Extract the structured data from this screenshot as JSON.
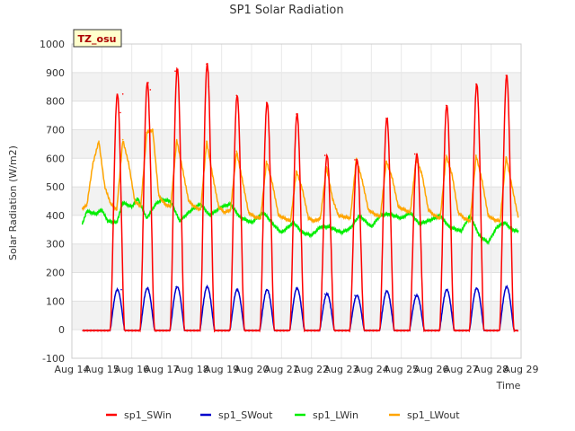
{
  "chart_data": {
    "type": "line",
    "title": "SP1 Solar Radiation",
    "xlabel": "Time",
    "ylabel": "Solar Radiation (W/m2)",
    "ylim": [
      -100,
      1000
    ],
    "xlim": [
      14,
      29
    ],
    "yticks": [
      -100,
      0,
      100,
      200,
      300,
      400,
      500,
      600,
      700,
      800,
      900,
      1000
    ],
    "xticks": [
      {
        "v": 14,
        "label": "Aug 14"
      },
      {
        "v": 15,
        "label": "Aug 15"
      },
      {
        "v": 16,
        "label": "Aug 16"
      },
      {
        "v": 17,
        "label": "Aug 17"
      },
      {
        "v": 18,
        "label": "Aug 18"
      },
      {
        "v": 19,
        "label": "Aug 19"
      },
      {
        "v": 20,
        "label": "Aug 20"
      },
      {
        "v": 21,
        "label": "Aug 21"
      },
      {
        "v": 22,
        "label": "Aug 22"
      },
      {
        "v": 23,
        "label": "Aug 23"
      },
      {
        "v": 24,
        "label": "Aug 24"
      },
      {
        "v": 25,
        "label": "Aug 25"
      },
      {
        "v": 26,
        "label": "Aug 26"
      },
      {
        "v": 27,
        "label": "Aug 27"
      },
      {
        "v": 28,
        "label": "Aug 28"
      },
      {
        "v": 29,
        "label": "Aug 29"
      }
    ],
    "grid": true,
    "legend_position": "bottom",
    "annotation_box": "TZ_osu",
    "x_range_data": [
      14.35,
      28.9
    ],
    "series": [
      {
        "name": "sp1_SWin",
        "color": "#ff0000",
        "daily_peak": [
          825,
          865,
          915,
          930,
          820,
          795,
          755,
          610,
          595,
          740,
          615,
          785,
          860,
          890
        ],
        "points": [
          [
            15.62,
            760
          ],
          [
            15.7,
            825
          ],
          [
            16.55,
            865
          ],
          [
            16.62,
            840
          ],
          [
            17.45,
            905
          ],
          [
            17.5,
            915
          ],
          [
            18.5,
            930
          ],
          [
            18.57,
            850
          ],
          [
            19.5,
            820
          ],
          [
            20.5,
            795
          ],
          [
            21.5,
            755
          ],
          [
            22.45,
            610
          ],
          [
            23.45,
            595
          ],
          [
            24.5,
            740
          ],
          [
            25.45,
            615
          ],
          [
            26.5,
            785
          ],
          [
            27.5,
            860
          ],
          [
            28.5,
            890
          ]
        ]
      },
      {
        "name": "sp1_SWout",
        "color": "#0000cc",
        "daily_peak": [
          140,
          145,
          150,
          150,
          140,
          140,
          145,
          125,
          120,
          135,
          120,
          140,
          145,
          150
        ],
        "points": [
          [
            15.65,
            140
          ],
          [
            16.55,
            145
          ],
          [
            17.48,
            150
          ],
          [
            18.5,
            150
          ],
          [
            19.5,
            140
          ],
          [
            20.5,
            140
          ],
          [
            21.5,
            145
          ],
          [
            22.45,
            125
          ],
          [
            23.45,
            120
          ],
          [
            24.5,
            135
          ],
          [
            25.45,
            120
          ],
          [
            26.5,
            140
          ],
          [
            27.5,
            145
          ],
          [
            28.5,
            150
          ]
        ]
      },
      {
        "name": "sp1_LWin",
        "color": "#00ee00",
        "points": [
          [
            14.35,
            370
          ],
          [
            14.5,
            415
          ],
          [
            14.8,
            405
          ],
          [
            15.0,
            420
          ],
          [
            15.2,
            380
          ],
          [
            15.5,
            375
          ],
          [
            15.7,
            445
          ],
          [
            16.0,
            430
          ],
          [
            16.2,
            460
          ],
          [
            16.5,
            390
          ],
          [
            16.8,
            440
          ],
          [
            17.0,
            455
          ],
          [
            17.3,
            450
          ],
          [
            17.6,
            380
          ],
          [
            18.0,
            420
          ],
          [
            18.3,
            440
          ],
          [
            18.6,
            400
          ],
          [
            19.0,
            430
          ],
          [
            19.3,
            440
          ],
          [
            19.6,
            395
          ],
          [
            20.0,
            375
          ],
          [
            20.4,
            410
          ],
          [
            20.8,
            360
          ],
          [
            21.0,
            340
          ],
          [
            21.4,
            375
          ],
          [
            21.7,
            340
          ],
          [
            22.0,
            330
          ],
          [
            22.3,
            360
          ],
          [
            22.6,
            360
          ],
          [
            23.0,
            340
          ],
          [
            23.3,
            355
          ],
          [
            23.6,
            400
          ],
          [
            24.0,
            360
          ],
          [
            24.3,
            400
          ],
          [
            24.6,
            405
          ],
          [
            25.0,
            390
          ],
          [
            25.3,
            410
          ],
          [
            25.6,
            370
          ],
          [
            26.0,
            385
          ],
          [
            26.3,
            400
          ],
          [
            26.6,
            360
          ],
          [
            27.0,
            345
          ],
          [
            27.3,
            400
          ],
          [
            27.6,
            330
          ],
          [
            27.9,
            305
          ],
          [
            28.2,
            360
          ],
          [
            28.45,
            375
          ],
          [
            28.7,
            350
          ],
          [
            28.9,
            345
          ]
        ]
      },
      {
        "name": "sp1_LWout",
        "color": "#ffa500",
        "points": [
          [
            14.35,
            425
          ],
          [
            14.5,
            435
          ],
          [
            14.7,
            580
          ],
          [
            14.9,
            660
          ],
          [
            15.1,
            500
          ],
          [
            15.3,
            440
          ],
          [
            15.5,
            420
          ],
          [
            15.7,
            665
          ],
          [
            15.9,
            580
          ],
          [
            16.1,
            450
          ],
          [
            16.3,
            430
          ],
          [
            16.5,
            690
          ],
          [
            16.7,
            700
          ],
          [
            16.9,
            470
          ],
          [
            17.1,
            440
          ],
          [
            17.3,
            430
          ],
          [
            17.5,
            665
          ],
          [
            17.7,
            560
          ],
          [
            17.9,
            450
          ],
          [
            18.1,
            430
          ],
          [
            18.3,
            420
          ],
          [
            18.5,
            660
          ],
          [
            18.7,
            540
          ],
          [
            18.9,
            430
          ],
          [
            19.1,
            410
          ],
          [
            19.3,
            420
          ],
          [
            19.5,
            625
          ],
          [
            19.7,
            520
          ],
          [
            19.9,
            410
          ],
          [
            20.1,
            395
          ],
          [
            20.3,
            390
          ],
          [
            20.5,
            590
          ],
          [
            20.7,
            510
          ],
          [
            20.9,
            400
          ],
          [
            21.1,
            390
          ],
          [
            21.3,
            380
          ],
          [
            21.5,
            555
          ],
          [
            21.7,
            490
          ],
          [
            21.9,
            390
          ],
          [
            22.1,
            380
          ],
          [
            22.3,
            390
          ],
          [
            22.5,
            570
          ],
          [
            22.7,
            460
          ],
          [
            22.9,
            400
          ],
          [
            23.1,
            395
          ],
          [
            23.3,
            390
          ],
          [
            23.5,
            600
          ],
          [
            23.7,
            520
          ],
          [
            23.9,
            420
          ],
          [
            24.1,
            405
          ],
          [
            24.3,
            395
          ],
          [
            24.5,
            590
          ],
          [
            24.7,
            530
          ],
          [
            24.9,
            430
          ],
          [
            25.1,
            420
          ],
          [
            25.3,
            410
          ],
          [
            25.5,
            600
          ],
          [
            25.7,
            540
          ],
          [
            25.9,
            420
          ],
          [
            26.1,
            400
          ],
          [
            26.3,
            390
          ],
          [
            26.5,
            610
          ],
          [
            26.7,
            540
          ],
          [
            26.9,
            410
          ],
          [
            27.1,
            390
          ],
          [
            27.3,
            380
          ],
          [
            27.5,
            610
          ],
          [
            27.7,
            520
          ],
          [
            27.9,
            400
          ],
          [
            28.1,
            385
          ],
          [
            28.3,
            380
          ],
          [
            28.5,
            605
          ],
          [
            28.7,
            500
          ],
          [
            28.9,
            395
          ]
        ]
      }
    ]
  }
}
